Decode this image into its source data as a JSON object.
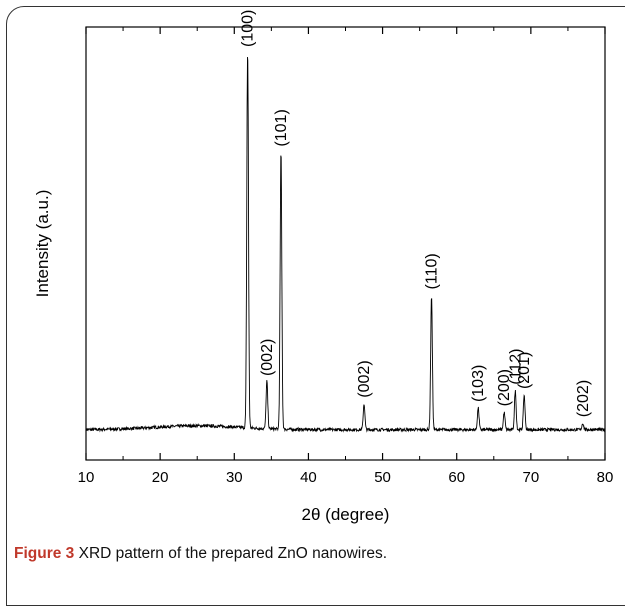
{
  "caption": {
    "label": "Figure 3",
    "text": "XRD pattern of the prepared ZnO nanowires."
  },
  "chart_data": {
    "type": "line",
    "title": "",
    "xlabel": "2θ (degree)",
    "ylabel": "Intensity (a.u.)",
    "xlim": [
      10,
      80
    ],
    "ylim": [
      0,
      100
    ],
    "xticks": [
      10,
      20,
      30,
      40,
      50,
      60,
      70,
      80
    ],
    "y_tick_labels_shown": false,
    "grid": false,
    "series": [
      {
        "values_note": "peaks (2θ, relative intensity)",
        "baseline": 7,
        "peaks": [
          {
            "x": 31.8,
            "y": 94,
            "label": "(100)"
          },
          {
            "x": 34.4,
            "y": 18,
            "label": "(002)"
          },
          {
            "x": 36.3,
            "y": 71,
            "label": "(101)"
          },
          {
            "x": 47.5,
            "y": 13,
            "label": "(002)"
          },
          {
            "x": 56.6,
            "y": 38,
            "label": "(110)"
          },
          {
            "x": 62.9,
            "y": 12,
            "label": "(103)"
          },
          {
            "x": 66.4,
            "y": 11,
            "label": "(200)"
          },
          {
            "x": 67.9,
            "y": 16,
            "label": "(112)"
          },
          {
            "x": 69.1,
            "y": 15,
            "label": "(201)"
          },
          {
            "x": 77.0,
            "y": 8.5,
            "label": "(202)"
          }
        ]
      }
    ],
    "color": "#000000"
  }
}
